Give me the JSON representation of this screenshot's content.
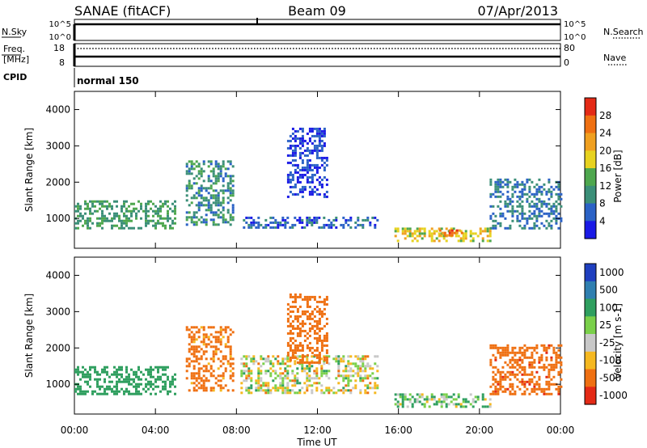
{
  "header": {
    "left": "SANAE (fitACF)",
    "center": "Beam 09",
    "right": "07/Apr/2013"
  },
  "nsky": {
    "label": "N.Sky",
    "tick_top": "10^5",
    "tick_bottom": "10^0",
    "right_label": "N.Search",
    "right_top": "10^5",
    "right_bottom": "10^0"
  },
  "freq": {
    "label1": "Freq.",
    "label2": "[MHz]",
    "tick_top": "18",
    "tick_bottom": "8",
    "right_label": "Nave",
    "right_top": "80",
    "right_bottom": "0"
  },
  "cpid": {
    "label": "CPID",
    "value": "normal 150"
  },
  "chart_data": [
    {
      "type": "heatmap",
      "name": "power",
      "ylabel": "Slant Range [km]",
      "xlabel": "",
      "xlim": [
        "00:00",
        "24:00"
      ],
      "ylim": [
        180,
        4500
      ],
      "yticks": [
        1000,
        2000,
        3000,
        4000
      ],
      "colorbar": {
        "label": "Power [dB]",
        "ticks": [
          "4",
          "8",
          "12",
          "16",
          "20",
          "24",
          "28"
        ],
        "colors": [
          "#1a1ae6",
          "#2b62c6",
          "#3b8f78",
          "#4ea74e",
          "#e7d21f",
          "#f0a020",
          "#ef7012",
          "#e42a16"
        ]
      },
      "regions": [
        {
          "t0": 0.0,
          "t1": 5.0,
          "r0": 700,
          "r1": 1500,
          "v": 12
        },
        {
          "t0": 5.5,
          "t1": 7.8,
          "r0": 800,
          "r1": 2600,
          "v": 10
        },
        {
          "t0": 8.2,
          "t1": 15.0,
          "r0": 750,
          "r1": 1050,
          "v": 6
        },
        {
          "t0": 10.5,
          "t1": 12.5,
          "r0": 1600,
          "r1": 3500,
          "v": 4
        },
        {
          "t0": 15.8,
          "t1": 20.5,
          "r0": 380,
          "r1": 750,
          "v": 18
        },
        {
          "t0": 18.0,
          "t1": 19.2,
          "r0": 500,
          "r1": 700,
          "v": 26
        },
        {
          "t0": 20.5,
          "t1": 24.0,
          "r0": 700,
          "r1": 2100,
          "v": 8
        }
      ]
    },
    {
      "type": "heatmap",
      "name": "velocity",
      "ylabel": "Slant Range [km]",
      "xlabel": "Time UT",
      "xlim": [
        "00:00",
        "24:00"
      ],
      "ylim": [
        180,
        4500
      ],
      "yticks": [
        1000,
        2000,
        3000,
        4000
      ],
      "xticks": [
        "00:00",
        "04:00",
        "08:00",
        "12:00",
        "16:00",
        "20:00",
        "00:00"
      ],
      "colorbar": {
        "label": "Velocity [m s-1]",
        "ticks": [
          "1000",
          "500",
          "100",
          "25",
          "-25",
          "-100",
          "-500",
          "-1000"
        ],
        "colors": [
          "#1f3fbf",
          "#2f7fb0",
          "#2f9f5f",
          "#7ad04a",
          "#c8c8c8",
          "#f5b820",
          "#ef7012",
          "#e42a16"
        ]
      },
      "regions": [
        {
          "t0": 0.0,
          "t1": 5.0,
          "r0": 700,
          "r1": 1500,
          "v": 300
        },
        {
          "t0": 5.5,
          "t1": 7.8,
          "r0": 800,
          "r1": 2600,
          "v": -200
        },
        {
          "t0": 8.2,
          "t1": 15.0,
          "r0": 750,
          "r1": 1800,
          "v": 0
        },
        {
          "t0": 10.5,
          "t1": 12.5,
          "r0": 1600,
          "r1": 3500,
          "v": -300
        },
        {
          "t0": 15.8,
          "t1": 20.5,
          "r0": 380,
          "r1": 750,
          "v": 80
        },
        {
          "t0": 20.5,
          "t1": 24.0,
          "r0": 700,
          "r1": 2100,
          "v": -400
        }
      ]
    }
  ]
}
